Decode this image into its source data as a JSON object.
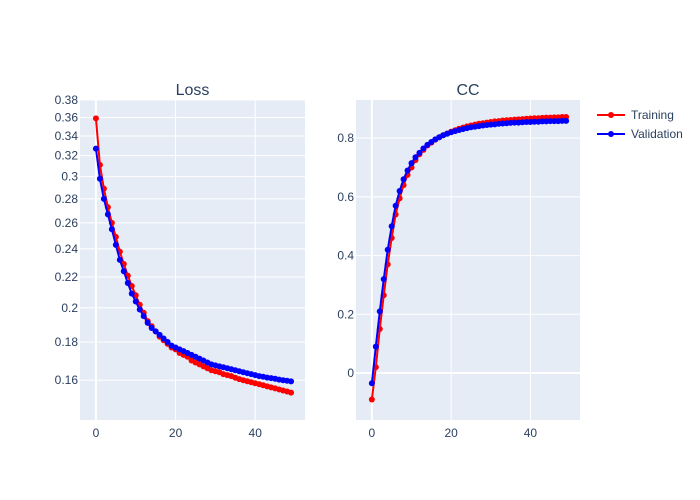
{
  "chart_data": [
    {
      "type": "line",
      "title": "Loss",
      "xlabel": "",
      "ylabel": "",
      "yscale": "log",
      "xlim": [
        -4,
        52.5
      ],
      "ylim": [
        0.1415,
        0.38
      ],
      "xticks": [
        "0",
        "20",
        "40"
      ],
      "yticks": [
        "0.16",
        "0.18",
        "0.2",
        "0.22",
        "0.24",
        "0.26",
        "0.28",
        "0.3",
        "0.32",
        "0.34",
        "0.36",
        "0.38"
      ],
      "grid": true,
      "series": [
        {
          "name": "Training",
          "color": "#ff0000",
          "x": [
            0,
            1,
            2,
            3,
            4,
            5,
            6,
            7,
            8,
            9,
            10,
            11,
            12,
            13,
            14,
            15,
            16,
            17,
            18,
            19,
            20,
            21,
            22,
            23,
            24,
            25,
            26,
            27,
            28,
            29,
            30,
            31,
            32,
            33,
            34,
            35,
            36,
            37,
            38,
            39,
            40,
            41,
            42,
            43,
            44,
            45,
            46,
            47,
            48,
            49
          ],
          "y": [
            0.359,
            0.311,
            0.289,
            0.273,
            0.26,
            0.249,
            0.238,
            0.229,
            0.221,
            0.214,
            0.208,
            0.202,
            0.197,
            0.192,
            0.189,
            0.186,
            0.183,
            0.181,
            0.179,
            0.177,
            0.176,
            0.174,
            0.173,
            0.172,
            0.17,
            0.169,
            0.168,
            0.167,
            0.166,
            0.165,
            0.1645,
            0.164,
            0.163,
            0.1625,
            0.162,
            0.1612,
            0.1605,
            0.16,
            0.1595,
            0.159,
            0.1585,
            0.158,
            0.1575,
            0.157,
            0.1565,
            0.156,
            0.1555,
            0.155,
            0.1545,
            0.154
          ]
        },
        {
          "name": "Validation",
          "color": "#0000ff",
          "x": [
            0,
            1,
            2,
            3,
            4,
            5,
            6,
            7,
            8,
            9,
            10,
            11,
            12,
            13,
            14,
            15,
            16,
            17,
            18,
            19,
            20,
            21,
            22,
            23,
            24,
            25,
            26,
            27,
            28,
            29,
            30,
            31,
            32,
            33,
            34,
            35,
            36,
            37,
            38,
            39,
            40,
            41,
            42,
            43,
            44,
            45,
            46,
            47,
            48,
            49
          ],
          "y": [
            0.327,
            0.298,
            0.28,
            0.267,
            0.255,
            0.243,
            0.232,
            0.224,
            0.216,
            0.209,
            0.204,
            0.199,
            0.195,
            0.191,
            0.188,
            0.186,
            0.184,
            0.182,
            0.18,
            0.178,
            0.177,
            0.176,
            0.175,
            0.174,
            0.173,
            0.172,
            0.171,
            0.17,
            0.169,
            0.168,
            0.1675,
            0.167,
            0.1665,
            0.166,
            0.1655,
            0.165,
            0.1645,
            0.164,
            0.1635,
            0.163,
            0.1625,
            0.162,
            0.1617,
            0.1613,
            0.161,
            0.1607,
            0.1603,
            0.16,
            0.1597,
            0.1594
          ]
        }
      ]
    },
    {
      "type": "line",
      "title": "CC",
      "xlabel": "",
      "ylabel": "",
      "xlim": [
        -4,
        52.5
      ],
      "ylim": [
        -0.16,
        0.93
      ],
      "xticks": [
        "0",
        "20",
        "40"
      ],
      "yticks": [
        "0",
        "0.2",
        "0.4",
        "0.6",
        "0.8"
      ],
      "grid": true,
      "series": [
        {
          "name": "Training",
          "color": "#ff0000",
          "x": [
            0,
            1,
            2,
            3,
            4,
            5,
            6,
            7,
            8,
            9,
            10,
            11,
            12,
            13,
            14,
            15,
            16,
            17,
            18,
            19,
            20,
            21,
            22,
            23,
            24,
            25,
            26,
            27,
            28,
            29,
            30,
            31,
            32,
            33,
            34,
            35,
            36,
            37,
            38,
            39,
            40,
            41,
            42,
            43,
            44,
            45,
            46,
            47,
            48,
            49
          ],
          "y": [
            -0.09,
            0.02,
            0.15,
            0.265,
            0.37,
            0.46,
            0.54,
            0.595,
            0.64,
            0.675,
            0.7,
            0.725,
            0.745,
            0.76,
            0.775,
            0.785,
            0.795,
            0.803,
            0.81,
            0.816,
            0.822,
            0.827,
            0.832,
            0.836,
            0.84,
            0.843,
            0.846,
            0.849,
            0.851,
            0.853,
            0.855,
            0.857,
            0.858,
            0.86,
            0.861,
            0.862,
            0.863,
            0.864,
            0.865,
            0.866,
            0.867,
            0.868,
            0.868,
            0.869,
            0.87,
            0.87,
            0.871,
            0.871,
            0.872,
            0.872
          ]
        },
        {
          "name": "Validation",
          "color": "#0000ff",
          "x": [
            0,
            1,
            2,
            3,
            4,
            5,
            6,
            7,
            8,
            9,
            10,
            11,
            12,
            13,
            14,
            15,
            16,
            17,
            18,
            19,
            20,
            21,
            22,
            23,
            24,
            25,
            26,
            27,
            28,
            29,
            30,
            31,
            32,
            33,
            34,
            35,
            36,
            37,
            38,
            39,
            40,
            41,
            42,
            43,
            44,
            45,
            46,
            47,
            48,
            49
          ],
          "y": [
            -0.035,
            0.09,
            0.21,
            0.32,
            0.42,
            0.5,
            0.57,
            0.62,
            0.66,
            0.69,
            0.715,
            0.735,
            0.75,
            0.765,
            0.777,
            0.787,
            0.796,
            0.803,
            0.81,
            0.815,
            0.82,
            0.824,
            0.828,
            0.831,
            0.834,
            0.837,
            0.839,
            0.841,
            0.843,
            0.845,
            0.846,
            0.847,
            0.849,
            0.85,
            0.851,
            0.852,
            0.853,
            0.853,
            0.854,
            0.855,
            0.855,
            0.856,
            0.856,
            0.857,
            0.857,
            0.858,
            0.858,
            0.858,
            0.859,
            0.859
          ]
        }
      ]
    }
  ],
  "legend": {
    "placement": "top-right",
    "items": [
      {
        "label": "Training",
        "color": "#ff0000"
      },
      {
        "label": "Validation",
        "color": "#0000ff"
      }
    ]
  },
  "colors": {
    "plot_bg": "#e5ecf6",
    "grid": "#ffffff",
    "text": "#2a3f5f"
  }
}
